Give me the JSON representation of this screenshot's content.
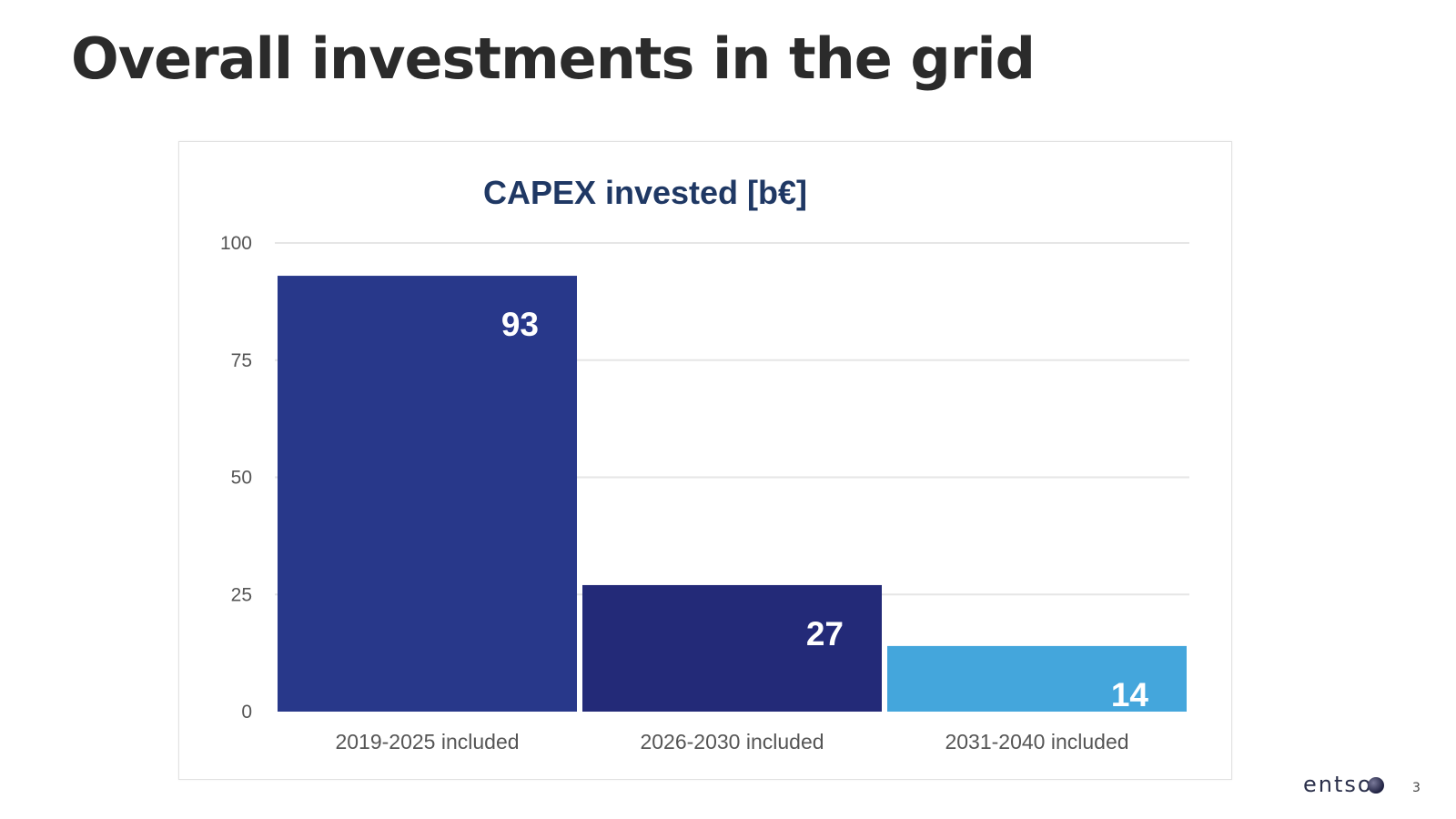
{
  "slide": {
    "title": "Overall investments in the grid",
    "logo_text": "entso",
    "page_number": "3"
  },
  "chart_data": {
    "type": "bar",
    "title": "CAPEX invested [b€]",
    "categories": [
      "2019-2025 included",
      "2026-2030 included",
      "2031-2040 included"
    ],
    "values": [
      93,
      27,
      14
    ],
    "colors": [
      "#28388a",
      "#232a78",
      "#44a6dc"
    ],
    "ylim": [
      0,
      100
    ],
    "yticks": [
      0,
      25,
      50,
      75,
      100
    ],
    "grid": true,
    "data_labels": [
      "93",
      "27",
      "14"
    ],
    "title_color": "#1f3864",
    "xlabel": "",
    "ylabel": ""
  }
}
